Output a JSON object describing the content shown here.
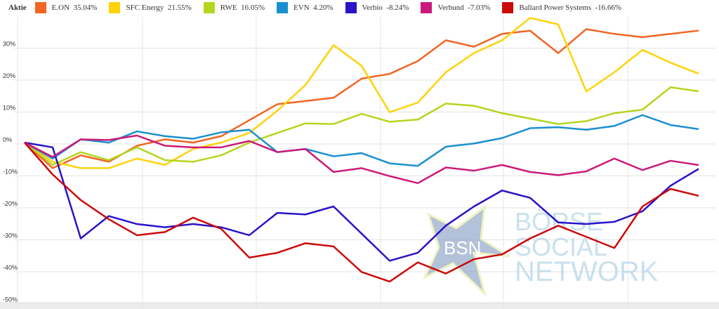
{
  "chart_data": {
    "type": "line",
    "legend_title": "Aktie",
    "legend_placement": "top",
    "ylim": [
      -50,
      40
    ],
    "yticks": [
      30,
      20,
      10,
      0,
      -10,
      -20,
      -30,
      -40,
      -50
    ],
    "ytick_labels": [
      "30%",
      "20%",
      "10%",
      "0%",
      "-10%",
      "-20%",
      "-30%",
      "-40%",
      "-50%"
    ],
    "grid": true,
    "series": [
      {
        "name": "E.ON",
        "label": "E.ON  35.04%",
        "color": "#f26522",
        "values": [
          0,
          -8,
          -4,
          -6,
          -1,
          1,
          0,
          2,
          7,
          12,
          13,
          14,
          20,
          21.5,
          25.5,
          32,
          30,
          34,
          35,
          28,
          35.5,
          34,
          33,
          34,
          35.04
        ]
      },
      {
        "name": "SFC Energy",
        "label": "SFC Energy  21.55%",
        "color": "#ffd20a",
        "values": [
          0,
          -6,
          -8,
          -8,
          -5,
          -7,
          -2,
          0,
          3,
          10,
          18,
          30.5,
          24,
          9.5,
          12.5,
          22,
          28,
          32,
          39,
          37,
          16,
          22,
          29,
          25,
          21.55
        ]
      },
      {
        "name": "RWE",
        "label": "RWE  16.05%",
        "color": "#b3d61f",
        "values": [
          0,
          -7,
          -3,
          -5.5,
          -1.5,
          -5.5,
          -6,
          -4,
          0,
          3,
          6,
          5.8,
          9,
          6.5,
          7.2,
          12.2,
          11.5,
          9.2,
          7.5,
          5.8,
          6.7,
          9.2,
          10.3,
          17.3,
          16.05
        ]
      },
      {
        "name": "EVN",
        "label": "EVN  4.20%",
        "color": "#1a8fd0",
        "values": [
          0,
          -5,
          1,
          0,
          3.5,
          2,
          1.2,
          3.2,
          4,
          -3,
          -2,
          -4.3,
          -3.3,
          -6.5,
          -7.3,
          -1.3,
          -0.3,
          1.4,
          4.5,
          4.8,
          4,
          5.2,
          8.6,
          5.5,
          4.2
        ]
      },
      {
        "name": "Verbio",
        "label": "Verbio  -8.24%",
        "color": "#2a14c8",
        "values": [
          0,
          -1.5,
          -30,
          -23,
          -25.5,
          -26.5,
          -25.5,
          -26.5,
          -29,
          -22,
          -22.5,
          -20,
          -28.5,
          -37,
          -34.5,
          -26,
          -20,
          -15,
          -17.3,
          -25,
          -25.5,
          -24.8,
          -21.5,
          -13.5,
          -8.24
        ]
      },
      {
        "name": "Verbund",
        "label": "Verbund  -7.03%",
        "color": "#cc1a7a",
        "values": [
          0,
          -4.5,
          1,
          0.8,
          2.2,
          -1,
          -1.5,
          -1.5,
          0.5,
          -3,
          -2,
          -9.2,
          -8,
          -10.5,
          -12.7,
          -7.8,
          -8.8,
          -7,
          -9.2,
          -10.2,
          -9,
          -5,
          -8.6,
          -5.7,
          -7.03
        ]
      },
      {
        "name": "Ballard Power Systems",
        "label": "Ballard Power Systems  -16.66%",
        "color": "#cc0a0a",
        "values": [
          0,
          -10,
          -18,
          -24,
          -29,
          -28,
          -23.5,
          -27,
          -36,
          -34.5,
          -31.5,
          -32.5,
          -40.5,
          -43.5,
          -37.5,
          -41,
          -36.5,
          -35,
          -30,
          -26,
          -29.5,
          -33,
          -20,
          -14.5,
          -16.66
        ]
      }
    ]
  },
  "watermark": {
    "star_text": "BSN",
    "line1": "BÖRSE",
    "line2": "SOCIAL",
    "line3": "NETWORK"
  }
}
